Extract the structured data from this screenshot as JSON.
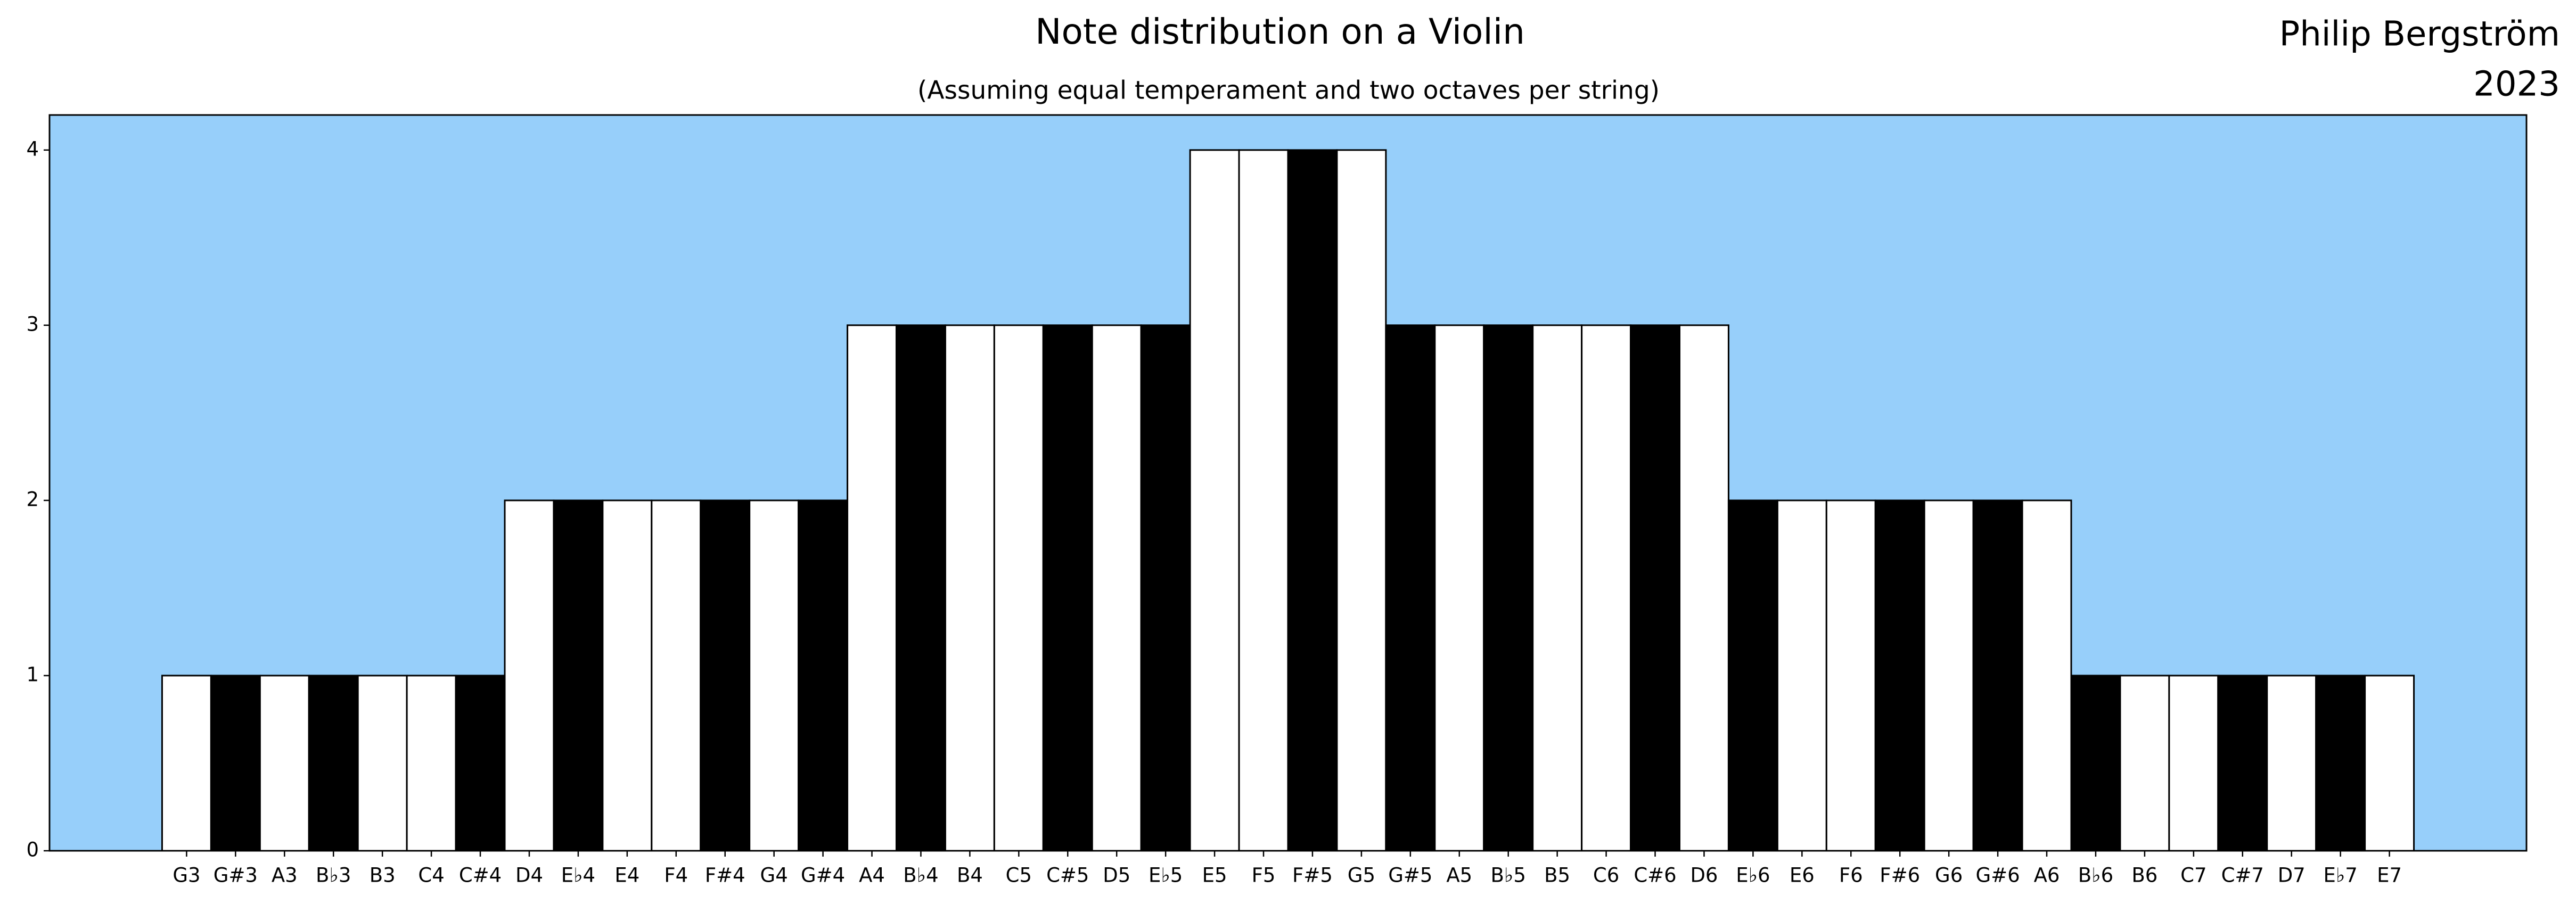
{
  "chart_data": {
    "type": "bar",
    "title": "Note distribution on a Violin",
    "subtitle": "(Assuming equal temperament and two octaves per string)",
    "annotations": [
      "Philip Bergström",
      "2023"
    ],
    "categories": [
      "G3",
      "G#3",
      "A3",
      "B♭3",
      "B3",
      "C4",
      "C#4",
      "D4",
      "E♭4",
      "E4",
      "F4",
      "F#4",
      "G4",
      "G#4",
      "A4",
      "B♭4",
      "B4",
      "C5",
      "C#5",
      "D5",
      "E♭5",
      "E5",
      "F5",
      "F#5",
      "G5",
      "G#5",
      "A5",
      "B♭5",
      "B5",
      "C6",
      "C#6",
      "D6",
      "E♭6",
      "E6",
      "F6",
      "F#6",
      "G6",
      "G#6",
      "A6",
      "B♭6",
      "B6",
      "C7",
      "C#7",
      "D7",
      "E♭7",
      "E7"
    ],
    "values": [
      1,
      1,
      1,
      1,
      1,
      1,
      1,
      2,
      2,
      2,
      2,
      2,
      2,
      2,
      3,
      3,
      3,
      3,
      3,
      3,
      3,
      4,
      4,
      4,
      4,
      3,
      3,
      3,
      3,
      3,
      3,
      3,
      2,
      2,
      2,
      2,
      2,
      2,
      2,
      1,
      1,
      1,
      1,
      1,
      1,
      1
    ],
    "colors": [
      "#ffffff",
      "#000000",
      "#ffffff",
      "#000000",
      "#ffffff",
      "#ffffff",
      "#000000",
      "#ffffff",
      "#000000",
      "#ffffff",
      "#ffffff",
      "#000000",
      "#ffffff",
      "#000000",
      "#ffffff",
      "#000000",
      "#ffffff",
      "#ffffff",
      "#000000",
      "#ffffff",
      "#000000",
      "#ffffff",
      "#ffffff",
      "#000000",
      "#ffffff",
      "#000000",
      "#ffffff",
      "#000000",
      "#ffffff",
      "#ffffff",
      "#000000",
      "#ffffff",
      "#000000",
      "#ffffff",
      "#ffffff",
      "#000000",
      "#ffffff",
      "#000000",
      "#ffffff",
      "#000000",
      "#ffffff",
      "#ffffff",
      "#000000",
      "#ffffff",
      "#000000",
      "#ffffff"
    ],
    "background": "#97cffa",
    "ylim": [
      0,
      4.2
    ],
    "yticks": [
      0,
      1,
      2,
      3,
      4
    ],
    "grid": false
  }
}
